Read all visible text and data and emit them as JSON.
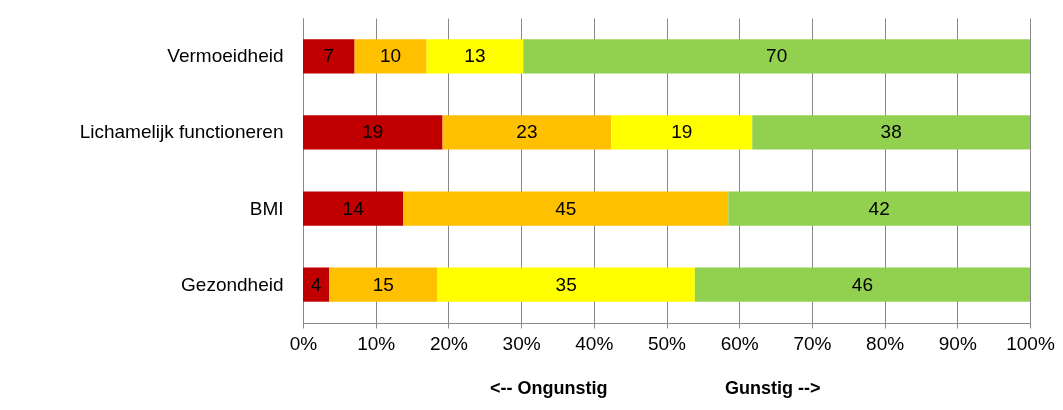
{
  "chart_data": {
    "type": "bar",
    "orientation": "horizontal",
    "stacked": true,
    "categories": [
      "Vermoeidheid",
      "Lichamelijk functioneren",
      "BMI",
      "Gezondheid"
    ],
    "series": [
      {
        "color": "#c00000",
        "values": [
          7.1,
          19.2,
          13.8,
          3.6
        ],
        "value_labels": [
          "7",
          "19",
          "14",
          "4"
        ]
      },
      {
        "color": "#ffc000",
        "values": [
          9.9,
          23.2,
          44.7,
          14.9
        ],
        "value_labels": [
          "10",
          "23",
          "45",
          "15"
        ]
      },
      {
        "color": "#ffff00",
        "values": [
          13.3,
          19.4,
          null,
          35.4
        ],
        "value_labels": [
          "13",
          "19",
          null,
          "35"
        ]
      },
      {
        "color": "#92d050",
        "values": [
          69.7,
          38.2,
          41.5,
          46.1
        ],
        "value_labels": [
          "70",
          "38",
          "42",
          "46"
        ]
      }
    ],
    "xlim": [
      0,
      100
    ],
    "xticks": [
      {
        "value": 0,
        "label": "0%"
      },
      {
        "value": 10,
        "label": "10%"
      },
      {
        "value": 20,
        "label": "20%"
      },
      {
        "value": 30,
        "label": "30%"
      },
      {
        "value": 40,
        "label": "40%"
      },
      {
        "value": 50,
        "label": "50%"
      },
      {
        "value": 60,
        "label": "60%"
      },
      {
        "value": 70,
        "label": "70%"
      },
      {
        "value": 80,
        "label": "80%"
      },
      {
        "value": 90,
        "label": "90%"
      },
      {
        "value": 100,
        "label": "100%"
      }
    ],
    "grid": "x",
    "annotations": [
      "<-- Ongunstig",
      "Gunstig -->"
    ]
  }
}
